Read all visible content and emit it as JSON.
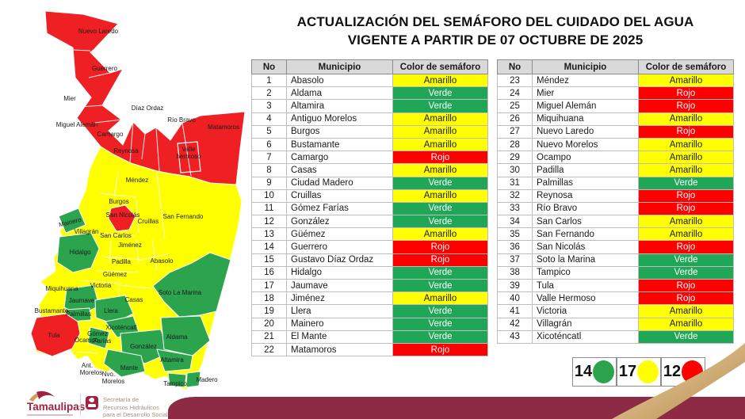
{
  "title": {
    "line1": "ACTUALIZACIÓN DEL SEMÁFORO DEL CUIDADO DEL AGUA",
    "line2": "VIGENTE A PARTIR DE 07 OCTUBRE DE 2025"
  },
  "colors": {
    "amarillo": "#ffff00",
    "verde": "#1fa757",
    "rojo": "#fe0000",
    "map_amarillo": "#ffff00",
    "map_verde": "#2ca44e",
    "map_rojo": "#ee2024",
    "maroon": "#8c2b43",
    "gold": "#c9a05e"
  },
  "tables": {
    "headers": {
      "no": "No",
      "municipio": "Municipio",
      "color": "Color de semáforo"
    },
    "left": [
      {
        "no": "1",
        "municipio": "Abasolo",
        "color": "Amarillo"
      },
      {
        "no": "2",
        "municipio": "Aldama",
        "color": "Verde"
      },
      {
        "no": "3",
        "municipio": "Altamira",
        "color": "Verde"
      },
      {
        "no": "4",
        "municipio": "Antiguo Morelos",
        "color": "Amarillo"
      },
      {
        "no": "5",
        "municipio": "Burgos",
        "color": "Amarillo"
      },
      {
        "no": "6",
        "municipio": "Bustamante",
        "color": "Amarillo"
      },
      {
        "no": "7",
        "municipio": "Camargo",
        "color": "Rojo"
      },
      {
        "no": "8",
        "municipio": "Casas",
        "color": "Amarillo"
      },
      {
        "no": "9",
        "municipio": "Ciudad Madero",
        "color": "Verde"
      },
      {
        "no": "10",
        "municipio": "Cruillas",
        "color": "Amarillo"
      },
      {
        "no": "11",
        "municipio": "Gómez Farías",
        "color": "Verde"
      },
      {
        "no": "12",
        "municipio": "González",
        "color": "Verde"
      },
      {
        "no": "13",
        "municipio": "Güémez",
        "color": "Amarillo"
      },
      {
        "no": "14",
        "municipio": "Guerrero",
        "color": "Rojo"
      },
      {
        "no": "15",
        "municipio": "Gustavo Díaz Ordaz",
        "color": "Rojo"
      },
      {
        "no": "16",
        "municipio": "Hidalgo",
        "color": "Verde"
      },
      {
        "no": "17",
        "municipio": "Jaumave",
        "color": "Verde"
      },
      {
        "no": "18",
        "municipio": "Jiménez",
        "color": "Amarillo"
      },
      {
        "no": "19",
        "municipio": "Llera",
        "color": "Verde"
      },
      {
        "no": "20",
        "municipio": "Mainero",
        "color": "Verde"
      },
      {
        "no": "21",
        "municipio": "El Mante",
        "color": "Verde"
      },
      {
        "no": "22",
        "municipio": "Matamoros",
        "color": "Rojo"
      }
    ],
    "right": [
      {
        "no": "23",
        "municipio": "Méndez",
        "color": "Amarillo"
      },
      {
        "no": "24",
        "municipio": "Mier",
        "color": "Rojo"
      },
      {
        "no": "25",
        "municipio": "Miguel Alemán",
        "color": "Rojo"
      },
      {
        "no": "26",
        "municipio": "Miquihuana",
        "color": "Amarillo"
      },
      {
        "no": "27",
        "municipio": "Nuevo Laredo",
        "color": "Rojo"
      },
      {
        "no": "28",
        "municipio": "Nuevo Morelos",
        "color": "Amarillo"
      },
      {
        "no": "29",
        "municipio": "Ocampo",
        "color": "Amarillo"
      },
      {
        "no": "30",
        "municipio": "Padilla",
        "color": "Amarillo"
      },
      {
        "no": "31",
        "municipio": "Palmillas",
        "color": "Verde"
      },
      {
        "no": "32",
        "municipio": "Reynosa",
        "color": "Rojo"
      },
      {
        "no": "33",
        "municipio": "Río Bravo",
        "color": "Rojo"
      },
      {
        "no": "34",
        "municipio": "San Carlos",
        "color": "Amarillo"
      },
      {
        "no": "35",
        "municipio": "San Fernando",
        "color": "Amarillo"
      },
      {
        "no": "36",
        "municipio": "San Nicolás",
        "color": "Rojo"
      },
      {
        "no": "37",
        "municipio": "Soto la Marina",
        "color": "Verde"
      },
      {
        "no": "38",
        "municipio": "Tampico",
        "color": "Verde"
      },
      {
        "no": "39",
        "municipio": "Tula",
        "color": "Rojo"
      },
      {
        "no": "40",
        "municipio": "Valle Hermoso",
        "color": "Rojo"
      },
      {
        "no": "41",
        "municipio": "Victoria",
        "color": "Amarillo"
      },
      {
        "no": "42",
        "municipio": "Villagrán",
        "color": "Amarillo"
      },
      {
        "no": "43",
        "municipio": "Xicoténcatl",
        "color": "Verde"
      }
    ]
  },
  "legend": {
    "items": [
      {
        "count": "14",
        "color": "#2ca44e"
      },
      {
        "count": "17",
        "color": "#ffff00"
      },
      {
        "count": "12",
        "color": "#fe0000"
      }
    ]
  },
  "map": {
    "labels": {
      "nuevo_laredo": "Nuevo Laredo",
      "guerrero": "Guerrero",
      "mier": "Mier",
      "diaz_ordaz": "Díaz Ordaz",
      "rio_bravo": "Río Bravo",
      "matamoros": "Matamoros",
      "miguel_aleman": "Miguel Alemán",
      "camargo": "Camargo",
      "reynosa": "Reynosa",
      "valle_1": "Valle",
      "valle_2": "hermoso",
      "mendez": "Méndez",
      "burgos": "Burgos",
      "san_nicolas": "San Nicolás",
      "cruillas": "Cruillas",
      "san_fernando": "San Fernando",
      "mainero": "Mainero",
      "villagran": "Villagrán",
      "san_carlos": "San Carlos",
      "hidalgo": "Hidalgo",
      "jimenez": "Jiménez",
      "padilla": "Padilla",
      "abasolo": "Abasolo",
      "guemez": "Güémez",
      "victoria": "Victoria",
      "soto_la_marina": "Soto La Marina",
      "miquihuana": "Miquihuana",
      "jaumave": "Jaumave",
      "bustamante": "Bustamante",
      "casas": "Casas",
      "llera": "Llera",
      "palmillas": "Palmillas",
      "tula": "Tula",
      "ocampo": "Ocampo",
      "gomez_1": "Gómez",
      "gomez_2": "Farías",
      "xicotencatl": "Xicoténcatl",
      "gonzalez": "González",
      "aldama": "Aldama",
      "mante": "Mante",
      "altamira": "Altamira",
      "ant_1": "Ant.",
      "ant_2": "Morelos",
      "nvo_1": "Nvo.",
      "nvo_2": "Morelos",
      "tampico": "Tampico",
      "madero": "Madero"
    }
  },
  "footer": {
    "brand": "Tamaulipas",
    "secretariat_line1": "Secretaría de",
    "secretariat_line2": "Recursos Hidráulicos",
    "secretariat_line3": "para el Desarrollo Social"
  }
}
